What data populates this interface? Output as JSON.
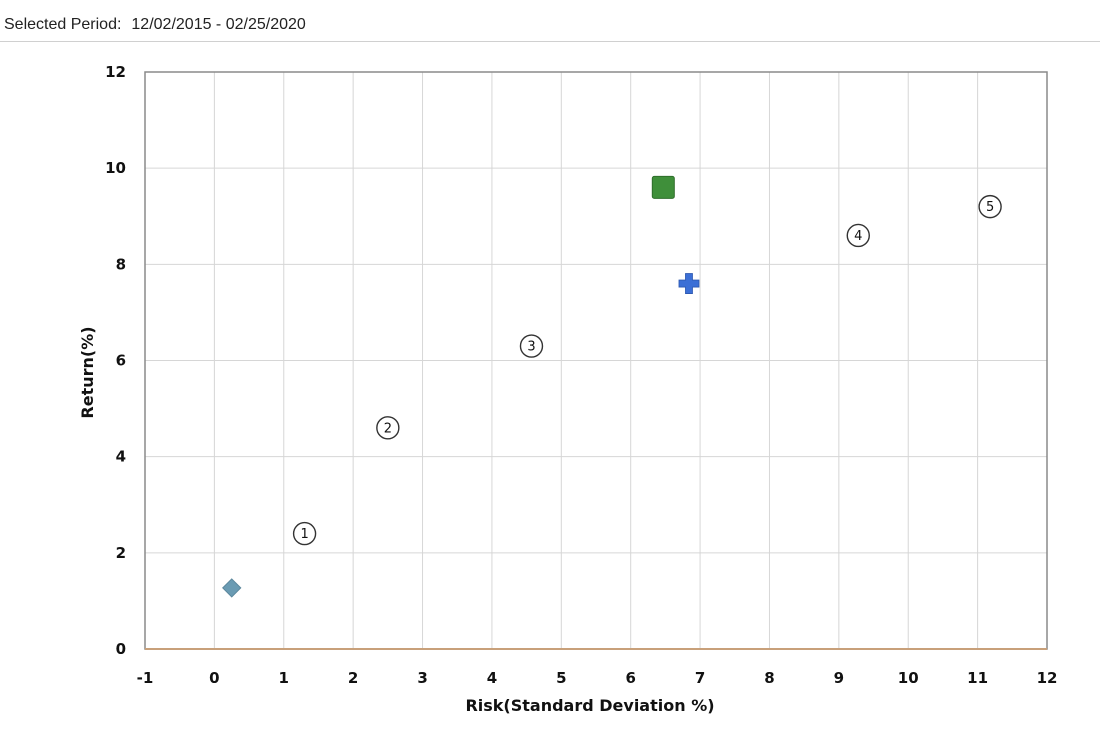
{
  "header": {
    "period_label": "Selected Period:",
    "period_value": "12/02/2015 - 02/25/2020"
  },
  "chart_data": {
    "type": "scatter",
    "title": "",
    "xlabel": "Risk(Standard Deviation %)",
    "ylabel": "Return(%)",
    "xlim": [
      -1,
      12
    ],
    "ylim": [
      0,
      12
    ],
    "xticks": [
      -1,
      0,
      1,
      2,
      3,
      4,
      5,
      6,
      7,
      8,
      9,
      10,
      11,
      12
    ],
    "yticks": [
      0,
      2,
      4,
      6,
      8,
      10,
      12
    ],
    "grid": true,
    "points": [
      {
        "label": "1",
        "x": 1.3,
        "y": 2.4,
        "marker": "circle-number"
      },
      {
        "label": "2",
        "x": 2.5,
        "y": 4.6,
        "marker": "circle-number"
      },
      {
        "label": "3",
        "x": 4.57,
        "y": 6.3,
        "marker": "circle-number"
      },
      {
        "label": "4",
        "x": 9.28,
        "y": 8.6,
        "marker": "circle-number"
      },
      {
        "label": "5",
        "x": 11.18,
        "y": 9.2,
        "marker": "circle-number"
      },
      {
        "label": "",
        "x": 0.25,
        "y": 1.27,
        "marker": "diamond",
        "color": "#6a9bb3"
      },
      {
        "label": "",
        "x": 6.47,
        "y": 9.6,
        "marker": "square",
        "color": "#3f8f3a"
      },
      {
        "label": "",
        "x": 6.84,
        "y": 7.6,
        "marker": "cross",
        "color": "#3b6fd6"
      }
    ]
  }
}
